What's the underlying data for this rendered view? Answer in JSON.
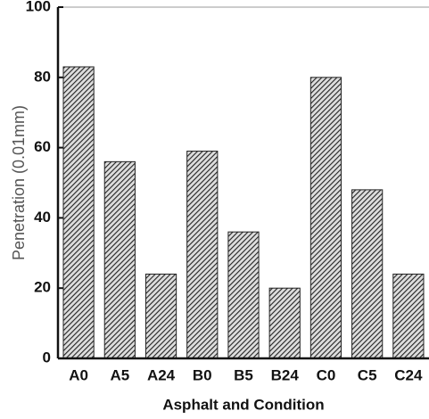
{
  "chart_data": {
    "type": "bar",
    "categories": [
      "A0",
      "A5",
      "A24",
      "B0",
      "B5",
      "B24",
      "C0",
      "C5",
      "C24"
    ],
    "values": [
      83,
      56,
      24,
      59,
      36,
      20,
      80,
      48,
      24
    ],
    "color": "#222222",
    "xlabel": "Asphalt and Condition",
    "ylabel": "Penetration (0.01mm)",
    "ylim": [
      0,
      100
    ],
    "yticks": [
      0,
      20,
      40,
      60,
      80,
      100
    ]
  }
}
